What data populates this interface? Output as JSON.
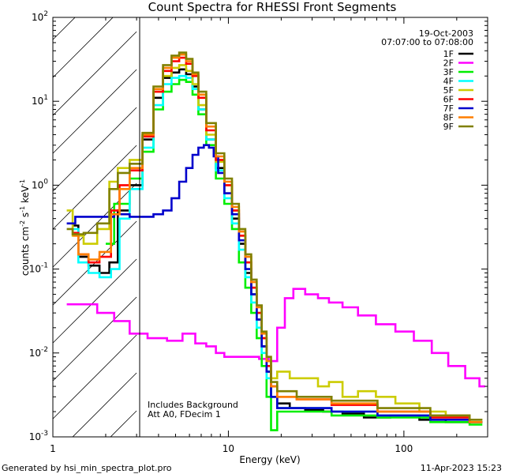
{
  "chart_data": {
    "type": "line",
    "title": "Count Spectra for RHESSI Front Segments",
    "xlabel": "Energy (keV)",
    "ylabel_parts": [
      "counts cm",
      "-2",
      " s",
      "-1",
      " keV",
      "-1"
    ],
    "x_scale": "log",
    "y_scale": "log",
    "xlim": [
      1,
      300
    ],
    "ylim": [
      0.001,
      100
    ],
    "x_ticks": [
      {
        "value": 1,
        "label": "1"
      },
      {
        "value": 10,
        "label": "10"
      },
      {
        "value": 100,
        "label": "100"
      }
    ],
    "y_ticks": [
      {
        "value": 0.001,
        "base": "10",
        "exp": "-3"
      },
      {
        "value": 0.01,
        "base": "10",
        "exp": "-2"
      },
      {
        "value": 0.1,
        "base": "10",
        "exp": "-1"
      },
      {
        "value": 1,
        "base": "10",
        "exp": "0"
      },
      {
        "value": 10,
        "base": "10",
        "exp": "1"
      },
      {
        "value": 100,
        "base": "10",
        "exp": "2"
      }
    ],
    "hatch_region_x": [
      1,
      3
    ],
    "date": "19-Oct-2003",
    "time_range": "07:07:00 to 07:08:00",
    "annotations": [
      "Includes Background",
      "Att A0, FDecim 1"
    ],
    "series": [
      {
        "name": "1F",
        "color": "#000000",
        "points": [
          [
            1.3,
            0.33
          ],
          [
            1.5,
            0.14
          ],
          [
            1.7,
            0.11
          ],
          [
            2,
            0.09
          ],
          [
            2.2,
            0.12
          ],
          [
            2.5,
            0.5
          ],
          [
            3,
            1.0
          ],
          [
            3.5,
            3.5
          ],
          [
            4,
            11
          ],
          [
            4.5,
            19
          ],
          [
            5,
            22
          ],
          [
            5.5,
            24
          ],
          [
            6,
            21
          ],
          [
            6.5,
            15
          ],
          [
            7,
            8
          ],
          [
            8,
            3.5
          ],
          [
            9,
            1.6
          ],
          [
            10,
            0.8
          ],
          [
            11,
            0.4
          ],
          [
            12,
            0.2
          ],
          [
            13,
            0.09
          ],
          [
            14,
            0.05
          ],
          [
            15,
            0.025
          ],
          [
            16,
            0.012
          ],
          [
            17,
            0.006
          ],
          [
            18,
            0.003
          ],
          [
            20,
            0.0025
          ],
          [
            25,
            0.0022
          ],
          [
            30,
            0.0021
          ],
          [
            40,
            0.002
          ],
          [
            50,
            0.0019
          ],
          [
            70,
            0.0017
          ],
          [
            100,
            0.0018
          ],
          [
            150,
            0.0016
          ],
          [
            200,
            0.0015
          ],
          [
            280,
            0.0015
          ]
        ]
      },
      {
        "name": "2F",
        "color": "#ff00ff",
        "points": [
          [
            1.2,
            0.038
          ],
          [
            1.6,
            0.038
          ],
          [
            2,
            0.03
          ],
          [
            2.5,
            0.024
          ],
          [
            3,
            0.017
          ],
          [
            4,
            0.015
          ],
          [
            5,
            0.014
          ],
          [
            6,
            0.017
          ],
          [
            7,
            0.013
          ],
          [
            8,
            0.012
          ],
          [
            9,
            0.01
          ],
          [
            10,
            0.009
          ],
          [
            12,
            0.009
          ],
          [
            14,
            0.009
          ],
          [
            16,
            0.0085
          ],
          [
            18,
            0.008
          ],
          [
            20,
            0.02
          ],
          [
            22,
            0.045
          ],
          [
            25,
            0.058
          ],
          [
            30,
            0.05
          ],
          [
            35,
            0.045
          ],
          [
            40,
            0.04
          ],
          [
            50,
            0.035
          ],
          [
            60,
            0.028
          ],
          [
            80,
            0.022
          ],
          [
            100,
            0.018
          ],
          [
            130,
            0.014
          ],
          [
            160,
            0.01
          ],
          [
            200,
            0.007
          ],
          [
            250,
            0.005
          ],
          [
            290,
            0.004
          ]
        ]
      },
      {
        "name": "3F",
        "color": "#00ee00",
        "points": [
          [
            2,
            0.2
          ],
          [
            2.5,
            0.6
          ],
          [
            3,
            1.2
          ],
          [
            3.5,
            2.5
          ],
          [
            4,
            8
          ],
          [
            4.5,
            13
          ],
          [
            5,
            16
          ],
          [
            5.5,
            18
          ],
          [
            6,
            17
          ],
          [
            6.5,
            12
          ],
          [
            7,
            7
          ],
          [
            8,
            3
          ],
          [
            9,
            1.2
          ],
          [
            10,
            0.6
          ],
          [
            11,
            0.3
          ],
          [
            12,
            0.12
          ],
          [
            13,
            0.06
          ],
          [
            14,
            0.03
          ],
          [
            15,
            0.015
          ],
          [
            16,
            0.007
          ],
          [
            17,
            0.003
          ],
          [
            18,
            0.0012
          ],
          [
            20,
            0.002
          ],
          [
            30,
            0.002
          ],
          [
            50,
            0.0018
          ],
          [
            100,
            0.0017
          ],
          [
            200,
            0.0015
          ],
          [
            280,
            0.0014
          ]
        ]
      },
      {
        "name": "4F",
        "color": "#00ffff",
        "points": [
          [
            1.3,
            0.3
          ],
          [
            1.5,
            0.12
          ],
          [
            1.7,
            0.09
          ],
          [
            2,
            0.08
          ],
          [
            2.3,
            0.1
          ],
          [
            2.5,
            0.4
          ],
          [
            3,
            0.9
          ],
          [
            3.5,
            2.8
          ],
          [
            4,
            9
          ],
          [
            4.5,
            16
          ],
          [
            5,
            19
          ],
          [
            5.5,
            20
          ],
          [
            6,
            19
          ],
          [
            6.5,
            14
          ],
          [
            7,
            8
          ],
          [
            8,
            3.5
          ],
          [
            9,
            1.5
          ],
          [
            10,
            0.7
          ],
          [
            11,
            0.35
          ],
          [
            12,
            0.17
          ],
          [
            13,
            0.08
          ],
          [
            14,
            0.04
          ],
          [
            15,
            0.02
          ],
          [
            16,
            0.01
          ],
          [
            17,
            0.005
          ],
          [
            18,
            0.003
          ],
          [
            20,
            0.0022
          ],
          [
            30,
            0.0022
          ],
          [
            50,
            0.002
          ],
          [
            100,
            0.0018
          ],
          [
            200,
            0.0016
          ],
          [
            280,
            0.0015
          ]
        ]
      },
      {
        "name": "5F",
        "color": "#cccc00",
        "points": [
          [
            1.2,
            0.5
          ],
          [
            1.4,
            0.25
          ],
          [
            1.6,
            0.2
          ],
          [
            2,
            0.3
          ],
          [
            2.2,
            1.1
          ],
          [
            2.5,
            1.6
          ],
          [
            3,
            2.0
          ],
          [
            3.5,
            4
          ],
          [
            4,
            13
          ],
          [
            4.5,
            20
          ],
          [
            5,
            25
          ],
          [
            5.5,
            27
          ],
          [
            6,
            23
          ],
          [
            6.5,
            16
          ],
          [
            7,
            9
          ],
          [
            8,
            4
          ],
          [
            9,
            1.9
          ],
          [
            10,
            1.0
          ],
          [
            11,
            0.5
          ],
          [
            12,
            0.25
          ],
          [
            13,
            0.12
          ],
          [
            14,
            0.06
          ],
          [
            15,
            0.03
          ],
          [
            16,
            0.015
          ],
          [
            17,
            0.008
          ],
          [
            18,
            0.005
          ],
          [
            20,
            0.006
          ],
          [
            25,
            0.005
          ],
          [
            30,
            0.005
          ],
          [
            35,
            0.004
          ],
          [
            40,
            0.0045
          ],
          [
            50,
            0.003
          ],
          [
            60,
            0.0035
          ],
          [
            80,
            0.003
          ],
          [
            100,
            0.0025
          ],
          [
            150,
            0.002
          ],
          [
            200,
            0.0018
          ],
          [
            280,
            0.0016
          ]
        ]
      },
      {
        "name": "6F",
        "color": "#ff0000",
        "points": [
          [
            1.3,
            0.27
          ],
          [
            1.5,
            0.15
          ],
          [
            1.7,
            0.12
          ],
          [
            2,
            0.14
          ],
          [
            2.3,
            0.5
          ],
          [
            2.5,
            1.0
          ],
          [
            3,
            1.5
          ],
          [
            3.5,
            3.8
          ],
          [
            4,
            13
          ],
          [
            4.5,
            23
          ],
          [
            5,
            30
          ],
          [
            5.5,
            33
          ],
          [
            6,
            28
          ],
          [
            6.5,
            20
          ],
          [
            7,
            11
          ],
          [
            8,
            4.5
          ],
          [
            9,
            2.0
          ],
          [
            10,
            1.0
          ],
          [
            11,
            0.5
          ],
          [
            12,
            0.25
          ],
          [
            13,
            0.12
          ],
          [
            14,
            0.06
          ],
          [
            15,
            0.03
          ],
          [
            16,
            0.015
          ],
          [
            17,
            0.007
          ],
          [
            18,
            0.004
          ],
          [
            20,
            0.003
          ],
          [
            30,
            0.0028
          ],
          [
            50,
            0.0024
          ],
          [
            100,
            0.002
          ],
          [
            200,
            0.0017
          ],
          [
            280,
            0.0015
          ]
        ]
      },
      {
        "name": "7F",
        "color": "#0000cc",
        "points": [
          [
            1.2,
            0.35
          ],
          [
            1.5,
            0.42
          ],
          [
            2,
            0.42
          ],
          [
            2.5,
            0.45
          ],
          [
            3,
            0.42
          ],
          [
            3.5,
            0.42
          ],
          [
            4,
            0.45
          ],
          [
            4.5,
            0.5
          ],
          [
            5,
            0.7
          ],
          [
            5.5,
            1.1
          ],
          [
            6,
            1.6
          ],
          [
            6.5,
            2.3
          ],
          [
            7,
            2.8
          ],
          [
            7.5,
            3.0
          ],
          [
            8,
            2.8
          ],
          [
            8.5,
            2.2
          ],
          [
            9,
            1.4
          ],
          [
            10,
            0.8
          ],
          [
            11,
            0.45
          ],
          [
            12,
            0.22
          ],
          [
            13,
            0.1
          ],
          [
            14,
            0.05
          ],
          [
            15,
            0.025
          ],
          [
            16,
            0.012
          ],
          [
            17,
            0.006
          ],
          [
            18,
            0.003
          ],
          [
            20,
            0.0022
          ],
          [
            30,
            0.0022
          ],
          [
            50,
            0.002
          ],
          [
            100,
            0.0018
          ],
          [
            200,
            0.0016
          ],
          [
            280,
            0.0015
          ]
        ]
      },
      {
        "name": "8F",
        "color": "#ff7f00",
        "points": [
          [
            1.3,
            0.25
          ],
          [
            1.5,
            0.15
          ],
          [
            1.7,
            0.13
          ],
          [
            2,
            0.16
          ],
          [
            2.3,
            0.45
          ],
          [
            2.5,
            0.9
          ],
          [
            3,
            1.6
          ],
          [
            3.5,
            4
          ],
          [
            4,
            14
          ],
          [
            4.5,
            25
          ],
          [
            5,
            33
          ],
          [
            5.5,
            36
          ],
          [
            6,
            30
          ],
          [
            6.5,
            21
          ],
          [
            7,
            12
          ],
          [
            8,
            5
          ],
          [
            9,
            2.2
          ],
          [
            10,
            1.1
          ],
          [
            11,
            0.55
          ],
          [
            12,
            0.28
          ],
          [
            13,
            0.14
          ],
          [
            14,
            0.07
          ],
          [
            15,
            0.035
          ],
          [
            16,
            0.017
          ],
          [
            17,
            0.008
          ],
          [
            18,
            0.004
          ],
          [
            20,
            0.003
          ],
          [
            30,
            0.0028
          ],
          [
            50,
            0.0025
          ],
          [
            100,
            0.002
          ],
          [
            200,
            0.0018
          ],
          [
            280,
            0.0015
          ]
        ]
      },
      {
        "name": "9F",
        "color": "#808000",
        "points": [
          [
            1.2,
            0.3
          ],
          [
            1.4,
            0.26
          ],
          [
            1.6,
            0.27
          ],
          [
            2,
            0.35
          ],
          [
            2.2,
            0.9
          ],
          [
            2.5,
            1.4
          ],
          [
            3,
            1.8
          ],
          [
            3.5,
            4.2
          ],
          [
            4,
            15
          ],
          [
            4.5,
            27
          ],
          [
            5,
            35
          ],
          [
            5.5,
            38
          ],
          [
            6,
            32
          ],
          [
            6.5,
            22
          ],
          [
            7,
            13
          ],
          [
            8,
            5.5
          ],
          [
            9,
            2.4
          ],
          [
            10,
            1.2
          ],
          [
            11,
            0.6
          ],
          [
            12,
            0.3
          ],
          [
            13,
            0.15
          ],
          [
            14,
            0.075
          ],
          [
            15,
            0.037
          ],
          [
            16,
            0.018
          ],
          [
            17,
            0.009
          ],
          [
            18,
            0.0045
          ],
          [
            20,
            0.0035
          ],
          [
            30,
            0.003
          ],
          [
            50,
            0.0027
          ],
          [
            100,
            0.0022
          ],
          [
            200,
            0.0018
          ],
          [
            280,
            0.0016
          ]
        ]
      }
    ]
  },
  "footer": {
    "left": "Generated by hsi_min_spectra_plot.pro",
    "right": "11-Apr-2023 15:23"
  }
}
